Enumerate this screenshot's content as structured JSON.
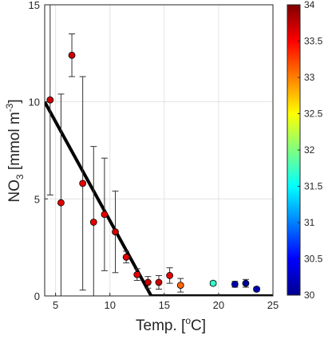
{
  "chart_data": {
    "type": "scatter",
    "xlabel": {
      "base": "Temp. [",
      "sup": "o",
      "rest": "C]"
    },
    "ylabel": {
      "base": "NO",
      "sub": "3",
      "mid": " [mmol m",
      "sup": "-3",
      "rest": "]"
    },
    "xlim": [
      4,
      25
    ],
    "ylim": [
      0,
      15
    ],
    "xticks": [
      5,
      10,
      15,
      20,
      25
    ],
    "yticks": [
      0,
      5,
      10,
      15
    ],
    "grid": true,
    "points": [
      {
        "x": 4.5,
        "y": 10.1,
        "err": 4.9,
        "c": 33.7
      },
      {
        "x": 5.5,
        "y": 4.8,
        "err": 5.6,
        "c": 33.6
      },
      {
        "x": 6.5,
        "y": 12.4,
        "err": 1.1,
        "c": 33.7
      },
      {
        "x": 7.5,
        "y": 5.8,
        "err": 5.5,
        "c": 33.6
      },
      {
        "x": 8.5,
        "y": 3.8,
        "err": 3.9,
        "c": 33.6
      },
      {
        "x": 9.5,
        "y": 4.2,
        "err": 2.9,
        "c": 33.6
      },
      {
        "x": 10.5,
        "y": 3.3,
        "err": 2.1,
        "c": 33.7
      },
      {
        "x": 11.5,
        "y": 2.0,
        "err": 0.3,
        "c": 33.6
      },
      {
        "x": 12.5,
        "y": 1.1,
        "err": 0.3,
        "c": 33.6
      },
      {
        "x": 13.5,
        "y": 0.7,
        "err": 0.3,
        "c": 33.7
      },
      {
        "x": 14.5,
        "y": 0.7,
        "err": 0.35,
        "c": 33.7
      },
      {
        "x": 15.5,
        "y": 1.05,
        "err": 0.4,
        "c": 33.6
      },
      {
        "x": 16.5,
        "y": 0.55,
        "err": 0.35,
        "c": 33.1
      },
      {
        "x": 19.5,
        "y": 0.65,
        "err": 0.1,
        "c": 31.7
      },
      {
        "x": 21.5,
        "y": 0.6,
        "err": 0.15,
        "c": 30.2
      },
      {
        "x": 22.5,
        "y": 0.65,
        "err": 0.2,
        "c": 30.1
      },
      {
        "x": 23.5,
        "y": 0.35,
        "err": 0.1,
        "c": 30.2
      }
    ],
    "fit_line": {
      "x": [
        4,
        13.8,
        25
      ],
      "y": [
        10.0,
        0,
        0
      ]
    },
    "colorbar": {
      "min": 30,
      "max": 34,
      "ticks": [
        "30",
        "30.5",
        "31",
        "31.5",
        "32",
        "32.5",
        "33",
        "33.5",
        "34"
      ],
      "colormap": "jet"
    }
  }
}
